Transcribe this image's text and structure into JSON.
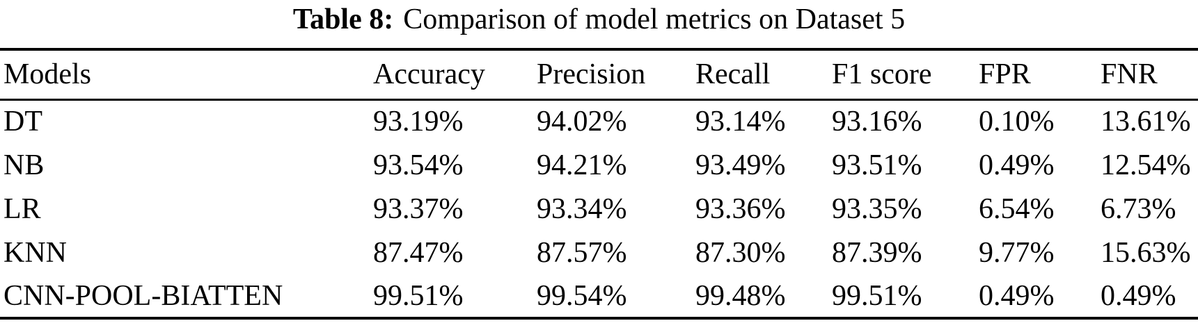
{
  "caption": {
    "label": "Table 8:",
    "text": "Comparison of model metrics on Dataset 5"
  },
  "table": {
    "headers": [
      "Models",
      "Accuracy",
      "Precision",
      "Recall",
      "F1 score",
      "FPR",
      "FNR"
    ],
    "rows": [
      [
        "DT",
        "93.19%",
        "94.02%",
        "93.14%",
        "93.16%",
        "0.10%",
        "13.61%"
      ],
      [
        "NB",
        "93.54%",
        "94.21%",
        "93.49%",
        "93.51%",
        "0.49%",
        "12.54%"
      ],
      [
        "LR",
        "93.37%",
        "93.34%",
        "93.36%",
        "93.35%",
        "6.54%",
        "6.73%"
      ],
      [
        "KNN",
        "87.47%",
        "87.57%",
        "87.30%",
        "87.39%",
        "9.77%",
        "15.63%"
      ],
      [
        "CNN-POOL-BIATTEN",
        "99.51%",
        "99.54%",
        "99.48%",
        "99.51%",
        "0.49%",
        "0.49%"
      ]
    ]
  },
  "colors": {
    "text": "#000000",
    "background": "#ffffff",
    "rule": "#000000"
  }
}
